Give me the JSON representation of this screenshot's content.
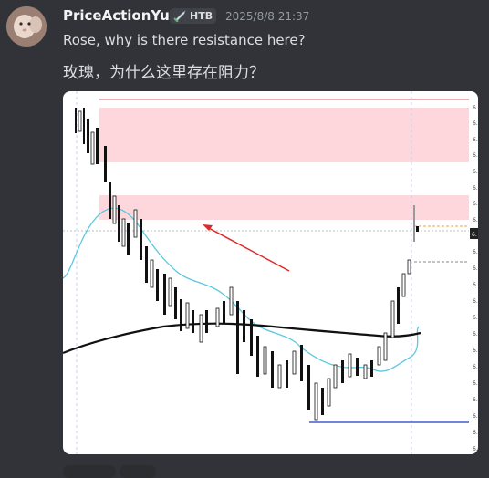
{
  "message": {
    "author": "PriceActionYu",
    "tag": "HTB",
    "timestamp": "2025/8/8 21:37",
    "line1": "Rose, why is there resistance here?",
    "line2": "玫瑰，为什么这里存在阻力？"
  },
  "colors": {
    "background": "#313338",
    "resistance_zone": "#fdd7dc",
    "ema_line": "#5bc8e0",
    "long_ma": "#111111",
    "arrow": "#e0282a",
    "support_line": "#3f5fcf"
  },
  "chart": {
    "description_icons": [
      "candlestick-chart",
      "red-arrow"
    ],
    "right_axis_labels": [
      "6.",
      "6.",
      "6.",
      "6.",
      "6.",
      "6.",
      "6.",
      "6.",
      "6.",
      "6.",
      "6.",
      "6.",
      "6.",
      "6.",
      "6.",
      "6.",
      "6.",
      "6.",
      "6.",
      "6.",
      "6.",
      "6."
    ],
    "current_price_badge": "6."
  }
}
